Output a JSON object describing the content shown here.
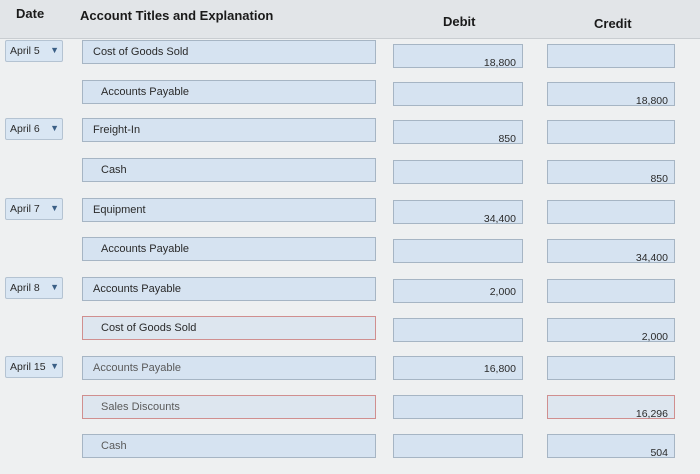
{
  "headers": {
    "date": "Date",
    "account": "Account Titles and Explanation",
    "debit": "Debit",
    "credit": "Credit"
  },
  "entries": [
    {
      "date": "April 5",
      "account": "Cost of Goods Sold",
      "debit": "18,800",
      "credit": ""
    },
    {
      "date": "",
      "account": "Accounts Payable",
      "debit": "",
      "credit": "18,800"
    },
    {
      "date": "April 6",
      "account": "Freight-In",
      "debit": "850",
      "credit": ""
    },
    {
      "date": "",
      "account": "Cash",
      "debit": "",
      "credit": "850"
    },
    {
      "date": "April 7",
      "account": "Equipment",
      "debit": "34,400",
      "credit": ""
    },
    {
      "date": "",
      "account": "Accounts Payable",
      "debit": "",
      "credit": "34,400"
    },
    {
      "date": "April 8",
      "account": "Accounts Payable",
      "debit": "2,000",
      "credit": ""
    },
    {
      "date": "",
      "account": "Cost of Goods Sold",
      "debit": "",
      "credit": "2,000"
    },
    {
      "date": "April 15",
      "account": "Accounts Payable",
      "debit": "16,800",
      "credit": ""
    },
    {
      "date": "",
      "account": "Sales Discounts",
      "debit": "",
      "credit": "16,296"
    },
    {
      "date": "",
      "account": "Cash",
      "debit": "",
      "credit": "504"
    }
  ],
  "icons": {
    "dropdown": "chevron-down-icon"
  }
}
